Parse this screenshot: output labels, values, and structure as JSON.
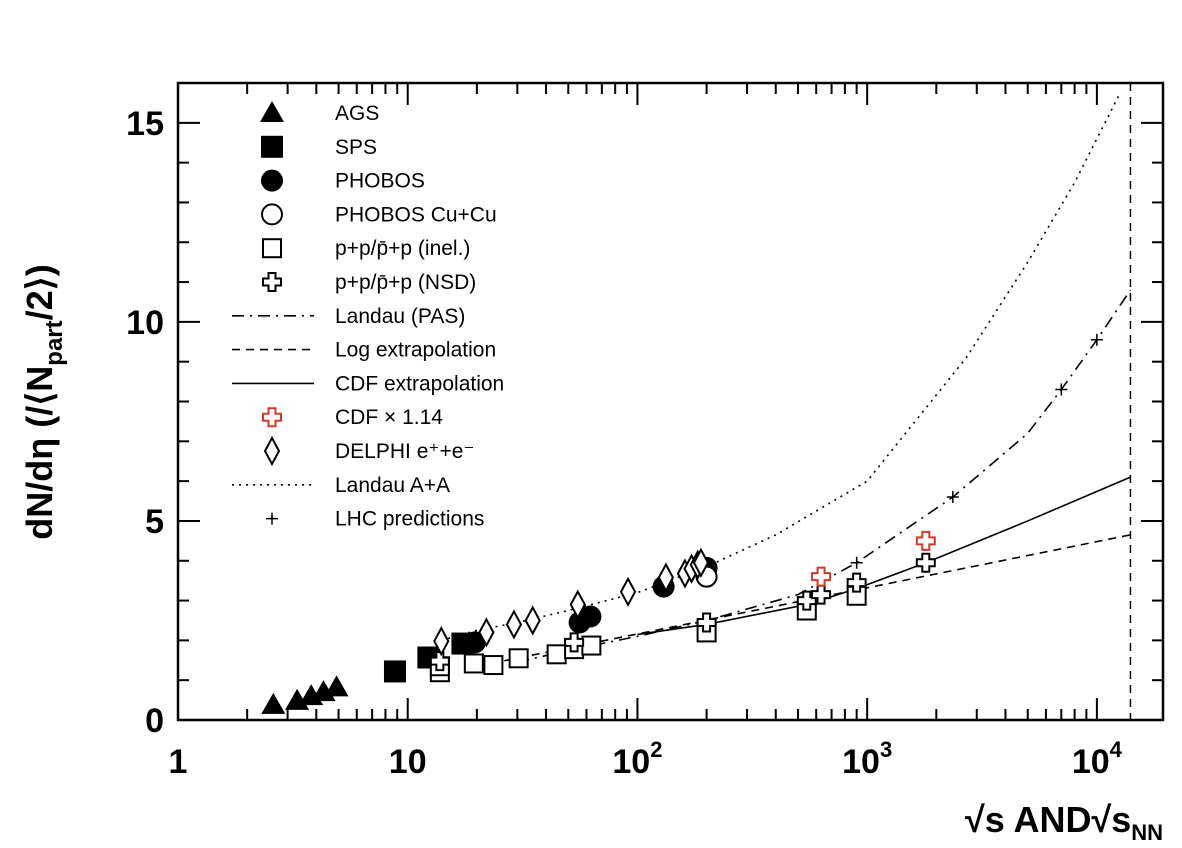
{
  "chart_data": {
    "type": "scatter",
    "title": "",
    "xlabel": {
      "main": "√s AND√s",
      "sub": "NN"
    },
    "ylabel": {
      "pre": "dN/dη (/⟨N",
      "sub": "part",
      "post": "/2⟩)"
    },
    "x_scale": "log",
    "xlim": [
      1,
      19400
    ],
    "ylim": [
      0,
      16
    ],
    "grid": false,
    "legend_position": "top-left",
    "x_ticks": [
      {
        "value": 1,
        "base": "1",
        "exp": ""
      },
      {
        "value": 10,
        "base": "10",
        "exp": ""
      },
      {
        "value": 100,
        "base": "10",
        "exp": "2"
      },
      {
        "value": 1000,
        "base": "10",
        "exp": "3"
      },
      {
        "value": 10000,
        "base": "10",
        "exp": "4"
      }
    ],
    "y_ticks": [
      {
        "value": 0,
        "label": "0"
      },
      {
        "value": 5,
        "label": "5"
      },
      {
        "value": 10,
        "label": "10"
      },
      {
        "value": 15,
        "label": "15"
      }
    ],
    "vertical_line_x": 14000,
    "series": [
      {
        "name": "AGS",
        "marker": "triangle-filled",
        "color": "#000000",
        "points": [
          [
            2.6,
            0.38
          ],
          [
            3.3,
            0.48
          ],
          [
            3.8,
            0.6
          ],
          [
            4.3,
            0.7
          ],
          [
            4.9,
            0.82
          ]
        ]
      },
      {
        "name": "SPS",
        "marker": "square-filled",
        "color": "#000000",
        "points": [
          [
            8.8,
            1.22
          ],
          [
            12.3,
            1.57
          ],
          [
            17.3,
            1.92
          ]
        ]
      },
      {
        "name": "PHOBOS",
        "marker": "circle-filled",
        "color": "#000000",
        "points": [
          [
            19.6,
            1.95
          ],
          [
            56,
            2.45
          ],
          [
            62.4,
            2.6
          ],
          [
            130,
            3.35
          ],
          [
            200,
            3.82
          ]
        ]
      },
      {
        "name": "PHOBOS Cu+Cu",
        "marker": "circle-open",
        "color": "#000000",
        "points": [
          [
            200,
            3.6
          ]
        ]
      },
      {
        "name": "p+p/p̄+p (inel.)",
        "marker": "square-open",
        "color": "#000000",
        "points": [
          [
            13.8,
            1.2
          ],
          [
            13.8,
            1.35
          ],
          [
            19.4,
            1.42
          ],
          [
            23.6,
            1.38
          ],
          [
            30.4,
            1.55
          ],
          [
            44.5,
            1.65
          ],
          [
            53,
            1.78
          ],
          [
            63,
            1.87
          ],
          [
            200,
            2.2
          ],
          [
            546,
            2.75
          ],
          [
            900,
            3.12
          ]
        ]
      },
      {
        "name": "p+p/p̄+p (NSD)",
        "marker": "cross-open",
        "color": "#000000",
        "points": [
          [
            13.8,
            1.48
          ],
          [
            53,
            1.95
          ],
          [
            200,
            2.45
          ],
          [
            546,
            3.0
          ],
          [
            630,
            3.15
          ],
          [
            900,
            3.45
          ],
          [
            1800,
            3.95
          ]
        ]
      },
      {
        "name": "Landau (PAS)",
        "line": "dashdot",
        "color": "#000000",
        "points": [
          [
            30,
            1.45
          ],
          [
            50,
            1.75
          ],
          [
            100,
            2.1
          ],
          [
            200,
            2.5
          ],
          [
            500,
            3.15
          ],
          [
            900,
            3.95
          ],
          [
            2360,
            5.6
          ],
          [
            5000,
            7.2
          ],
          [
            7000,
            8.3
          ],
          [
            10000,
            9.55
          ],
          [
            14000,
            10.8
          ]
        ]
      },
      {
        "name": "Log extrapolation",
        "line": "dashed",
        "color": "#000000",
        "points": [
          [
            20,
            1.35
          ],
          [
            14000,
            4.65
          ]
        ]
      },
      {
        "name": "CDF extrapolation",
        "line": "solid",
        "color": "#000000",
        "points": [
          [
            100,
            2.15
          ],
          [
            200,
            2.4
          ],
          [
            546,
            2.9
          ],
          [
            900,
            3.3
          ],
          [
            1800,
            3.95
          ],
          [
            5000,
            5.0
          ],
          [
            14000,
            6.1
          ]
        ]
      },
      {
        "name": "CDF × 1.14",
        "marker": "cross-open",
        "color": "#d03a2a",
        "points": [
          [
            630,
            3.6
          ],
          [
            1800,
            4.5
          ]
        ]
      },
      {
        "name": "DELPHI e⁺+e⁻",
        "marker": "diamond-open",
        "color": "#000000",
        "points": [
          [
            14,
            1.98
          ],
          [
            22,
            2.2
          ],
          [
            29,
            2.4
          ],
          [
            35,
            2.5
          ],
          [
            55,
            2.9
          ],
          [
            91,
            3.22
          ],
          [
            133,
            3.58
          ],
          [
            161,
            3.68
          ],
          [
            172,
            3.8
          ],
          [
            183,
            3.9
          ],
          [
            189,
            3.95
          ]
        ]
      },
      {
        "name": "Landau A+A",
        "line": "dotted",
        "color": "#000000",
        "points": [
          [
            14,
            2.0
          ],
          [
            20,
            2.25
          ],
          [
            30,
            2.45
          ],
          [
            50,
            2.75
          ],
          [
            100,
            3.2
          ],
          [
            200,
            3.85
          ],
          [
            400,
            4.65
          ],
          [
            1000,
            6.0
          ],
          [
            2700,
            9.1
          ],
          [
            5000,
            11.5
          ],
          [
            8000,
            13.5
          ],
          [
            12500,
            15.7
          ]
        ]
      },
      {
        "name": "LHC predictions",
        "marker": "plus",
        "color": "#000000",
        "points": [
          [
            900,
            3.95
          ],
          [
            2360,
            5.6
          ],
          [
            7000,
            8.3
          ],
          [
            10000,
            9.55
          ]
        ]
      }
    ]
  }
}
